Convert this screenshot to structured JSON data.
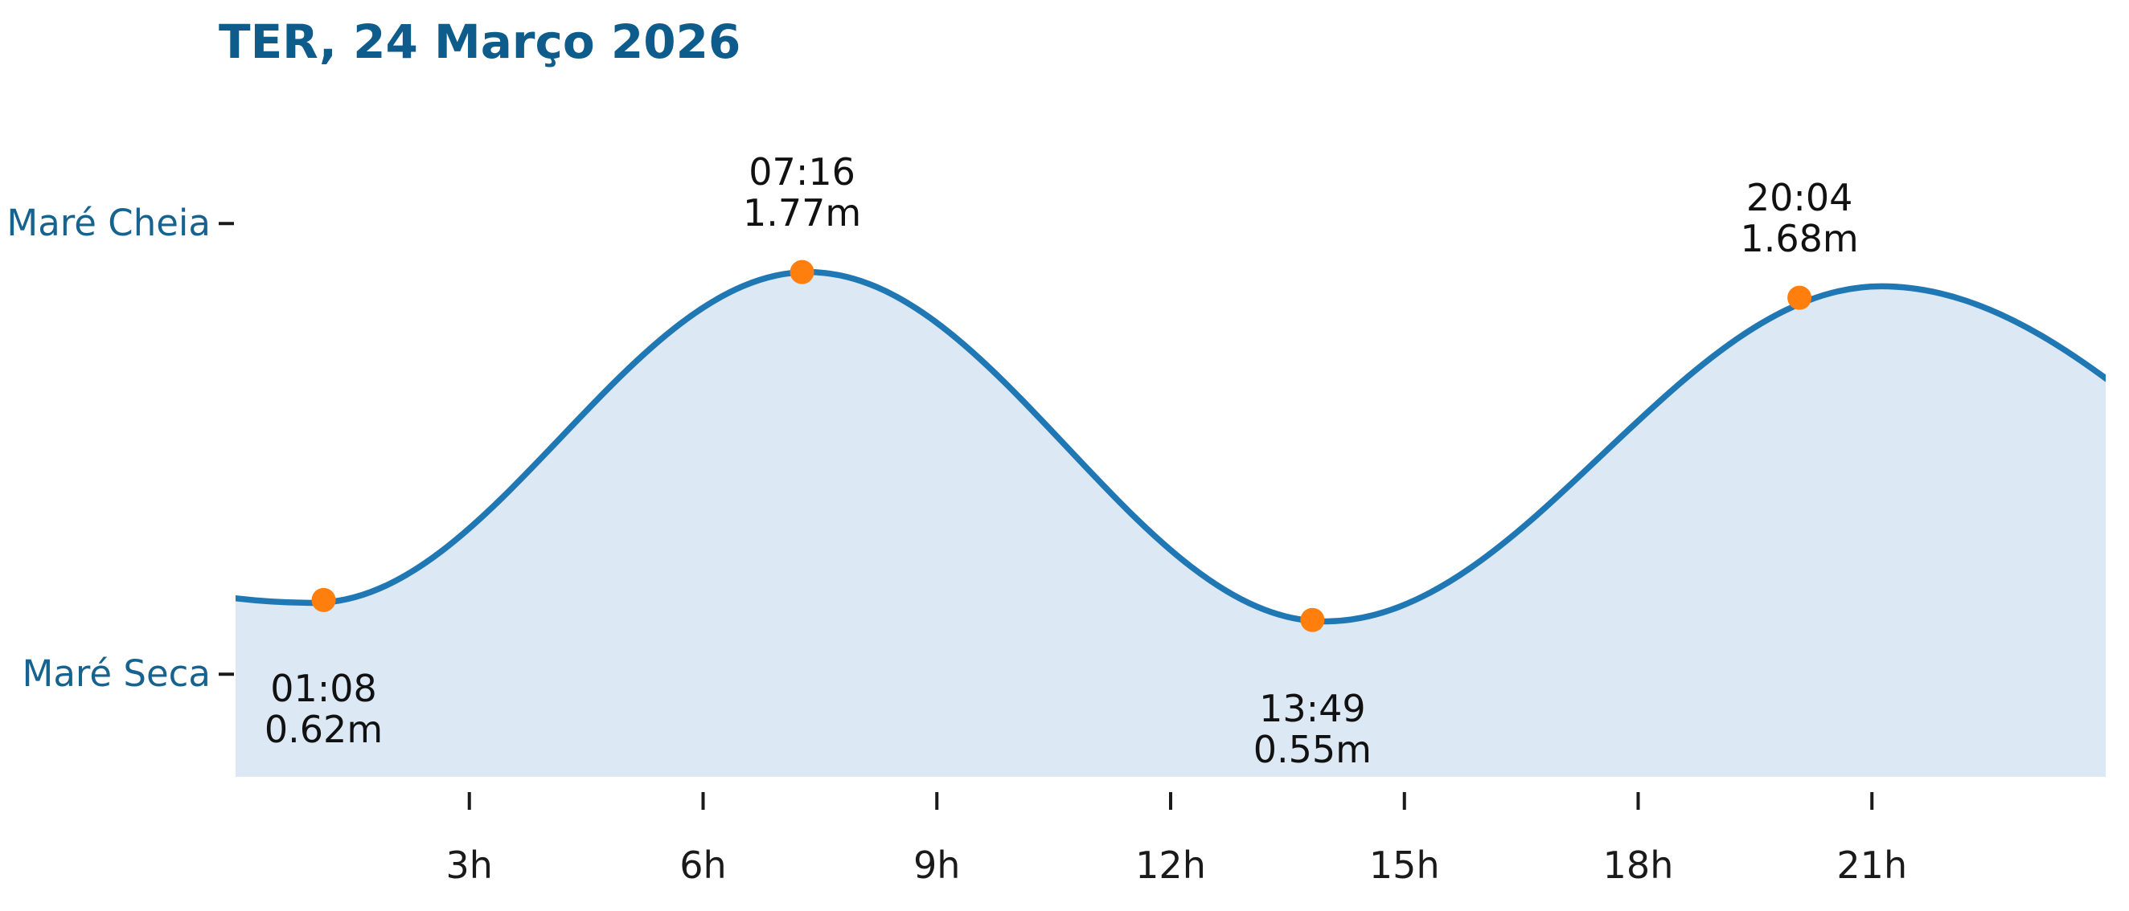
{
  "title": "TER, 24 Março 2026",
  "colors": {
    "title_text": "#0d5c8c",
    "axis_label_text": "#176390",
    "tick_label_text": "#1a1a1a",
    "annotation_text": "#111111",
    "curve_stroke": "#1f77b4",
    "area_fill": "#dce8f4",
    "marker_fill": "#ff7f0e",
    "tick_mark": "#1a1a1a"
  },
  "chart_data": {
    "type": "area",
    "title": "TER, 24 Março 2026",
    "xlabel": "",
    "ylabel": "",
    "x_unit": "hours of day",
    "xlim": [
      0,
      24
    ],
    "ylim_m": [
      0,
      2.45
    ],
    "grid": false,
    "legend": "none",
    "x_ticks": [
      {
        "hour": 3,
        "label": "3h"
      },
      {
        "hour": 6,
        "label": "6h"
      },
      {
        "hour": 9,
        "label": "9h"
      },
      {
        "hour": 12,
        "label": "12h"
      },
      {
        "hour": 15,
        "label": "15h"
      },
      {
        "hour": 18,
        "label": "18h"
      },
      {
        "hour": 21,
        "label": "21h"
      }
    ],
    "y_ticks": [
      {
        "label": "Maré Cheia",
        "value_m_estimated": 1.94
      },
      {
        "label": "Maré Seca",
        "value_m_estimated": 0.36
      }
    ],
    "tide_events": [
      {
        "time": "01:08",
        "height_m": 0.62,
        "height_label": "0.62m",
        "hour_decimal": 1.13,
        "type": "low"
      },
      {
        "time": "07:16",
        "height_m": 1.77,
        "height_label": "1.77m",
        "hour_decimal": 7.27,
        "type": "high"
      },
      {
        "time": "13:49",
        "height_m": 0.55,
        "height_label": "0.55m",
        "hour_decimal": 13.82,
        "type": "low"
      },
      {
        "time": "20:04",
        "height_m": 1.68,
        "height_label": "1.68m",
        "hour_decimal": 20.07,
        "type": "high"
      }
    ],
    "curve_anchor_points_estimated": [
      {
        "hour": -12.0,
        "height_m": 1.7
      },
      {
        "hour": 1.0,
        "height_m": 0.61
      },
      {
        "hour": 7.35,
        "height_m": 1.77
      },
      {
        "hour": 13.98,
        "height_m": 0.545
      },
      {
        "hour": 21.12,
        "height_m": 1.72
      },
      {
        "hour": 29.3,
        "height_m": 0.55
      }
    ]
  }
}
